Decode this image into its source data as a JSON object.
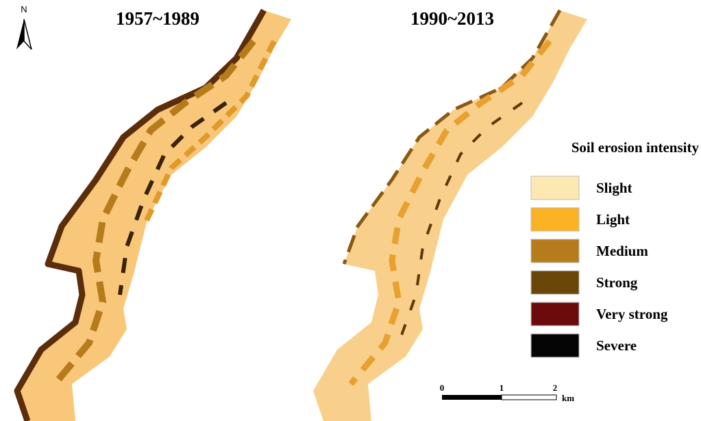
{
  "north_label": "N",
  "panels": [
    {
      "title": "1957~1989"
    },
    {
      "title": "1990~2013"
    }
  ],
  "legend": {
    "title": "Soil erosion intensity",
    "items": [
      {
        "label": "Slight",
        "color": "#fde8b2"
      },
      {
        "label": "Light",
        "color": "#fbb224"
      },
      {
        "label": "Medium",
        "color": "#b67c1c"
      },
      {
        "label": "Strong",
        "color": "#6a4608"
      },
      {
        "label": "Very strong",
        "color": "#6b0b0b"
      },
      {
        "label": "Severe",
        "color": "#050505"
      }
    ]
  },
  "scale_bar": {
    "ticks": [
      0,
      1,
      2
    ],
    "unit": "km"
  }
}
